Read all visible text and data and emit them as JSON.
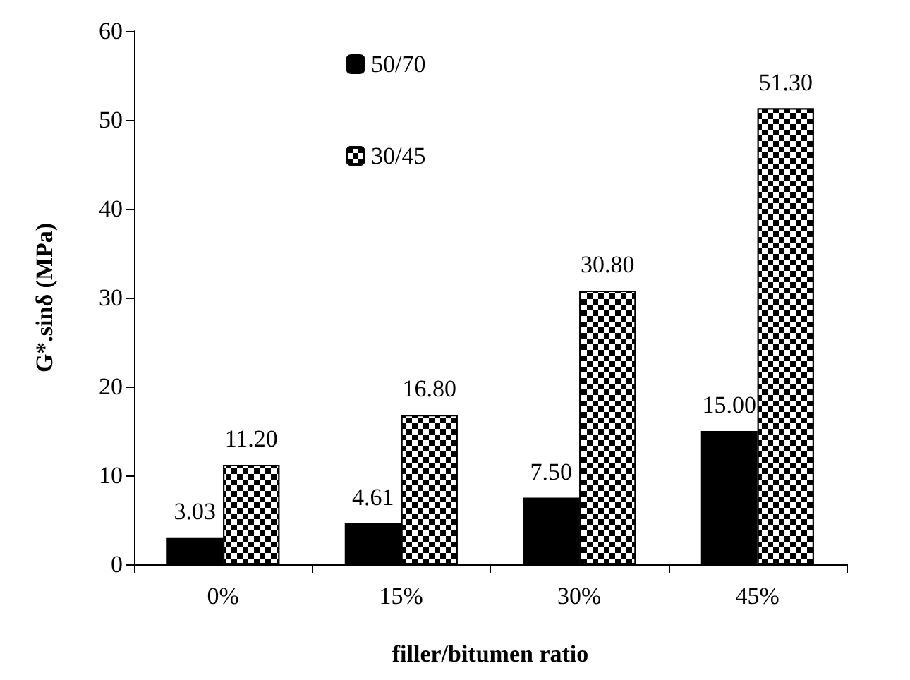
{
  "chart_data": {
    "type": "bar",
    "xlabel": "filler/bitumen ratio",
    "ylabel": "G*.sinδ (MPa)",
    "categories": [
      "0%",
      "15%",
      "30%",
      "45%"
    ],
    "series": [
      {
        "name": "50/70",
        "color": "#000000",
        "values": [
          3.03,
          4.61,
          7.5,
          15.0
        ],
        "value_labels": [
          "3.03",
          "4.61",
          "7.50",
          "15.00"
        ]
      },
      {
        "name": "30/45",
        "color": "#000000",
        "values": [
          11.2,
          16.8,
          30.8,
          51.3
        ],
        "value_labels": [
          "11.20",
          "16.80",
          "30.80",
          "51.30"
        ]
      }
    ],
    "ylim": [
      0,
      60
    ],
    "yticks": [
      0,
      10,
      20,
      30,
      40,
      50,
      60
    ],
    "grid": false,
    "legend": "top left"
  }
}
